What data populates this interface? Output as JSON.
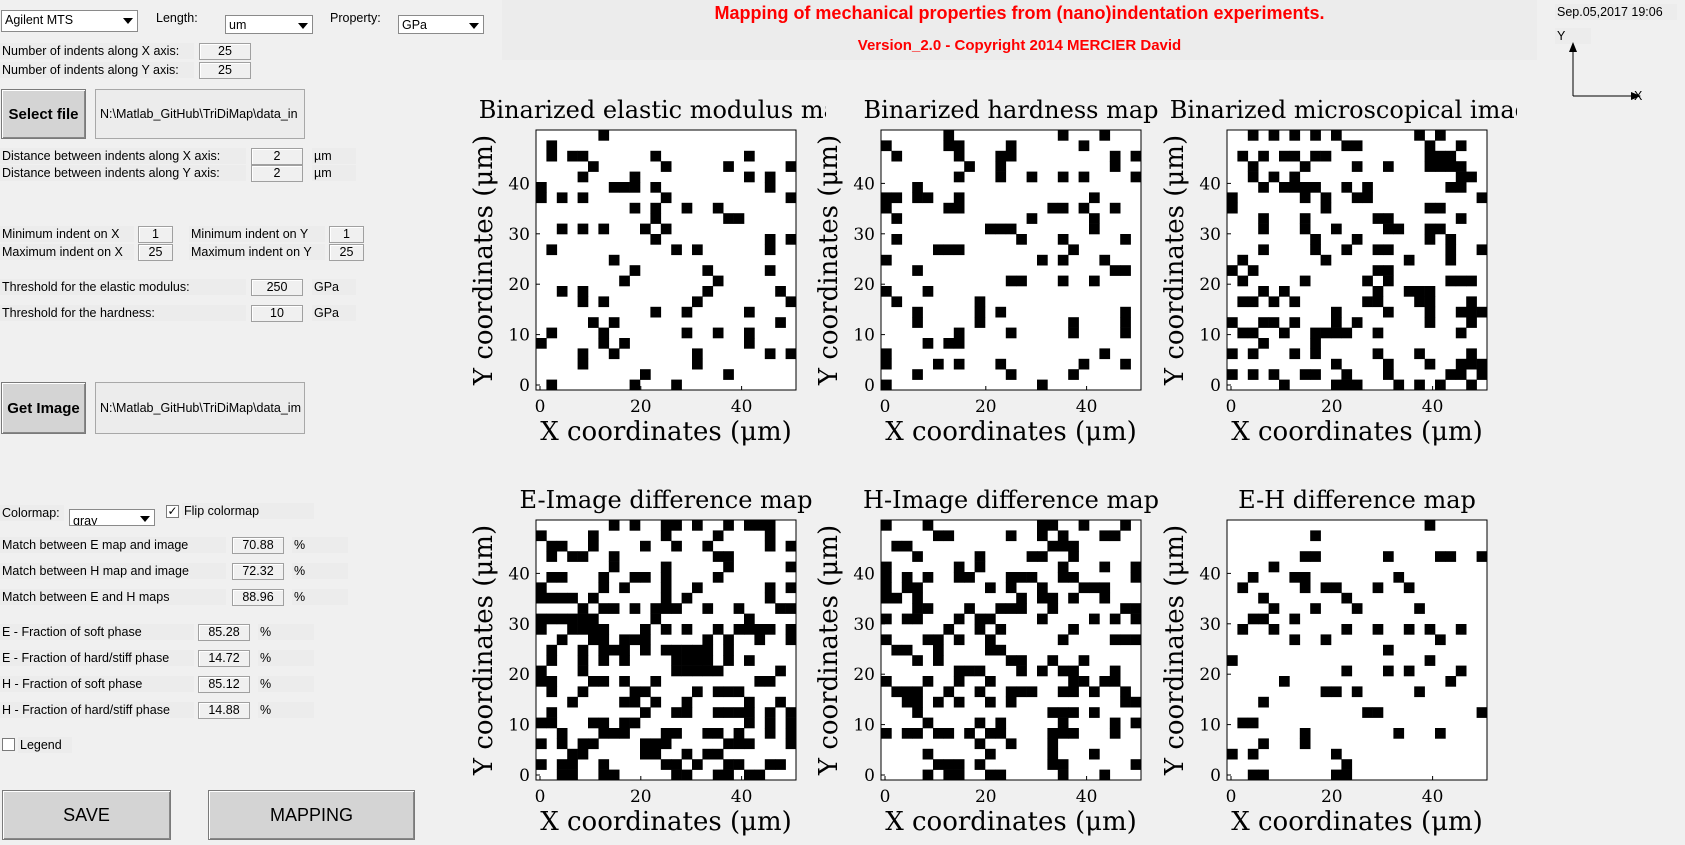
{
  "controls": {
    "machine_select": "Agilent MTS",
    "length_label": "Length:",
    "length_select": "um",
    "property_label": "Property:",
    "property_select": "GPa",
    "indents_x_label": "Number of indents along X axis:",
    "indents_x": "25",
    "indents_y_label": "Number of indents along Y axis:",
    "indents_y": "25",
    "select_file_button": "Select file",
    "file_path": "N:\\Matlab_GitHub\\TriDiMap\\data_in",
    "dist_x_label": "Distance between indents along X axis:",
    "dist_x": "2",
    "dist_y_label": "Distance between indents along Y axis:",
    "dist_y": "2",
    "unit_um": "µm",
    "min_x_label": "Minimum indent on X",
    "min_x": "1",
    "max_x_label": "Maximum indent on X",
    "max_x": "25",
    "min_y_label": "Minimum indent on Y",
    "min_y": "1",
    "max_y_label": "Maximum indent on Y",
    "max_y": "25",
    "thr_e_label": "Threshold for the elastic modulus:",
    "thr_e": "250",
    "thr_h_label": "Threshold for the hardness:",
    "thr_h": "10",
    "unit_gpa": "GPa",
    "get_image_button": "Get Image",
    "image_path": "N:\\Matlab_GitHub\\TriDiMap\\data_im",
    "colormap_label": "Colormap:",
    "colormap_select": "gray",
    "flip_colormap_label": "Flip colormap",
    "flip_checked": "✓",
    "match_e_label": "Match between E map and image",
    "match_e": "70.88",
    "match_h_label": "Match between H map and image",
    "match_h": "72.32",
    "match_eh_label": "Match between E and H maps",
    "match_eh": "88.96",
    "pct": "%",
    "e_soft_label": "E - Fraction of soft phase",
    "e_soft": "85.28",
    "e_hard_label": "E - Fraction of hard/stiff phase",
    "e_hard": "14.72",
    "h_soft_label": "H - Fraction of soft phase",
    "h_soft": "85.12",
    "h_hard_label": "H - Fraction of hard/stiff phase",
    "h_hard": "14.88",
    "legend_label": "Legend",
    "save_button": "SAVE",
    "mapping_button": "MAPPING"
  },
  "header": {
    "title": "Mapping of mechanical properties from (nano)indentation experiments.",
    "version": "Version_2.0 - Copyright 2014 MERCIER David",
    "date": "Sep.05,2017 19:06",
    "axis_y": "Y",
    "axis_x": "X"
  },
  "colors": {
    "title": "#ff0000",
    "panel": "#f0f0f0",
    "on": "#000000",
    "off": "#ffffff"
  },
  "chart_data": [
    {
      "type": "heatmap",
      "title": "Binarized elastic modulus map",
      "xlabel": "X coordinates (μm)",
      "ylabel": "Y coordinates (μm)",
      "xticks": [
        "0",
        "20",
        "40"
      ],
      "yticks": [
        "0",
        "10",
        "20",
        "30",
        "40"
      ],
      "xlim": [
        0,
        50
      ],
      "ylim": [
        0,
        50
      ],
      "colormap": "gray (flipped, binary)"
    },
    {
      "type": "heatmap",
      "title": "Binarized hardness map",
      "xlabel": "X coordinates (μm)",
      "ylabel": "Y coordinates (μm)",
      "xticks": [
        "0",
        "20",
        "40"
      ],
      "yticks": [
        "0",
        "10",
        "20",
        "30",
        "40"
      ],
      "xlim": [
        0,
        50
      ],
      "ylim": [
        0,
        50
      ],
      "colormap": "gray (flipped, binary)"
    },
    {
      "type": "heatmap",
      "title": "Binarized microscopical image",
      "xlabel": "X coordinates (μm)",
      "ylabel": "Y coordinates (μm)",
      "xticks": [
        "0",
        "20",
        "40"
      ],
      "yticks": [
        "0",
        "10",
        "20",
        "30",
        "40"
      ],
      "xlim": [
        0,
        50
      ],
      "ylim": [
        0,
        50
      ],
      "colormap": "gray (flipped, binary)"
    },
    {
      "type": "heatmap",
      "title": "E-Image difference map",
      "xlabel": "X coordinates (μm)",
      "ylabel": "Y coordinates (μm)",
      "xticks": [
        "0",
        "20",
        "40"
      ],
      "yticks": [
        "0",
        "10",
        "20",
        "30",
        "40"
      ],
      "xlim": [
        0,
        50
      ],
      "ylim": [
        0,
        50
      ],
      "colormap": "gray (flipped, binary)"
    },
    {
      "type": "heatmap",
      "title": "H-Image difference map",
      "xlabel": "X coordinates (μm)",
      "ylabel": "Y coordinates (μm)",
      "xticks": [
        "0",
        "20",
        "40"
      ],
      "yticks": [
        "0",
        "10",
        "20",
        "30",
        "40"
      ],
      "xlim": [
        0,
        50
      ],
      "ylim": [
        0,
        50
      ],
      "colormap": "gray (flipped, binary)"
    },
    {
      "type": "heatmap",
      "title": "E-H difference map",
      "xlabel": "X coordinates (μm)",
      "ylabel": "Y coordinates (μm)",
      "xticks": [
        "0",
        "20",
        "40"
      ],
      "yticks": [
        "0",
        "10",
        "20",
        "30",
        "40"
      ],
      "xlim": [
        0,
        50
      ],
      "ylim": [
        0,
        50
      ],
      "colormap": "gray (flipped, binary)"
    }
  ]
}
